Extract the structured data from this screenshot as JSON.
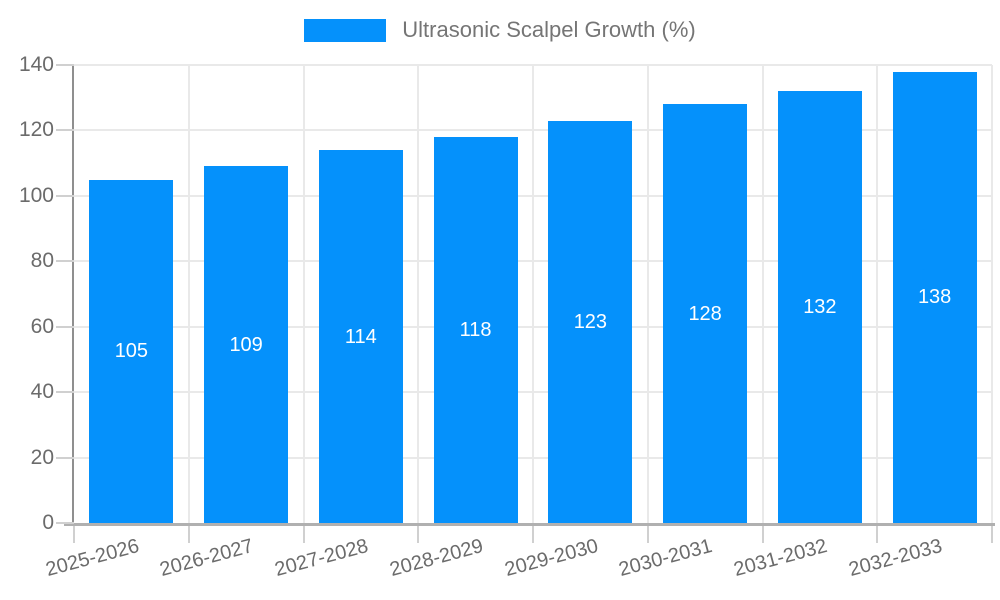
{
  "legend": {
    "label": "Ultrasonic Scalpel Growth (%)"
  },
  "chart_data": {
    "type": "bar",
    "title": "",
    "series_name": "Ultrasonic Scalpel Growth (%)",
    "categories": [
      "2025-2026",
      "2026-2027",
      "2027-2028",
      "2028-2029",
      "2029-2030",
      "2030-2031",
      "2031-2032",
      "2032-2033"
    ],
    "values": [
      105,
      109,
      114,
      118,
      123,
      128,
      132,
      138
    ],
    "xlabel": "",
    "ylabel": "",
    "ylim": [
      0,
      140
    ],
    "yticks": [
      0,
      20,
      40,
      60,
      80,
      100,
      120,
      140
    ],
    "grid": true,
    "legend_position": "top",
    "x_tick_rotation_deg": -15,
    "bar_value_labels_shown": true
  },
  "colors": {
    "background": "#ffffff",
    "bar": "#0591fb",
    "grid": "#e9e9e9",
    "tick": "#d0d0d0",
    "y_axis": "#8f8f8f",
    "x_axis": "#b0b0b0",
    "axis_label": "#6b6b6b",
    "value_label": "#ffffff",
    "legend_text": "#757575"
  }
}
